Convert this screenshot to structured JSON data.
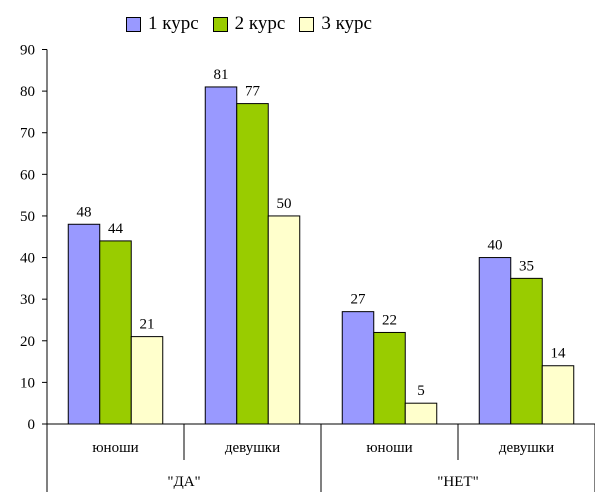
{
  "chart_data": {
    "type": "bar",
    "categories": [
      "юноши",
      "девушки",
      "юноши",
      "девушки"
    ],
    "groups": [
      {
        "label": "\"ДА\"",
        "categories": [
          0,
          1
        ]
      },
      {
        "label": "\"НЕТ\"",
        "categories": [
          2,
          3
        ]
      }
    ],
    "series": [
      {
        "name": "1 курс",
        "color": "#9999FF",
        "values": [
          48,
          81,
          27,
          40
        ]
      },
      {
        "name": "2 курс",
        "color": "#99CC00",
        "values": [
          44,
          77,
          22,
          35
        ]
      },
      {
        "name": "3 курс",
        "color": "#FFFFCC",
        "values": [
          21,
          50,
          5,
          14
        ]
      }
    ],
    "ylim": [
      0,
      90
    ],
    "yticks": [
      0,
      10,
      20,
      30,
      40,
      50,
      60,
      70,
      80,
      90
    ],
    "grid": false,
    "legend_position": "top"
  }
}
